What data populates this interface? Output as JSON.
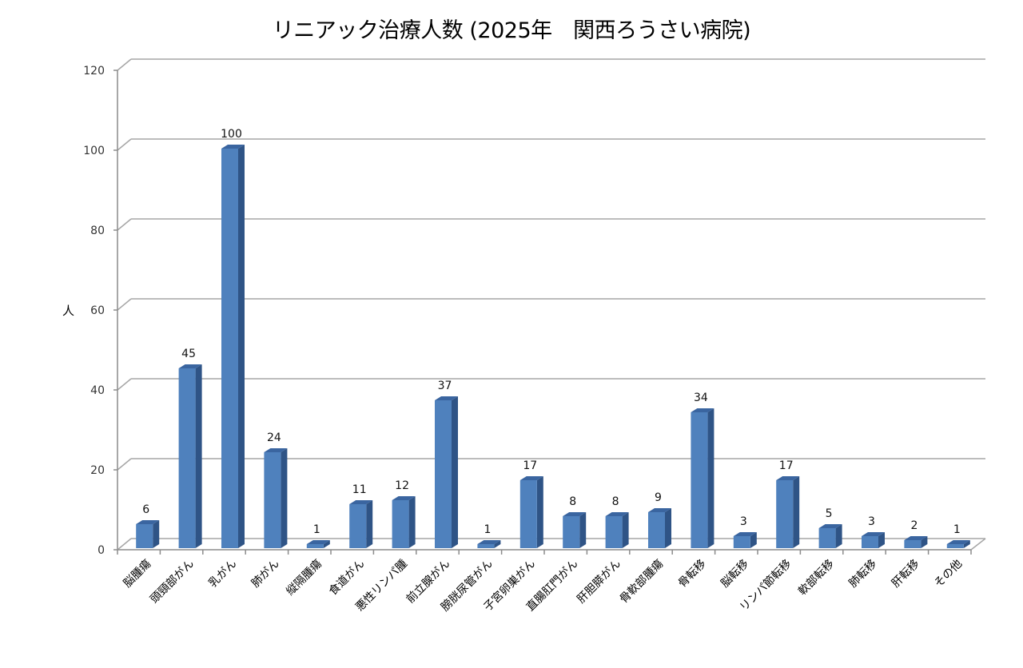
{
  "chart_data": {
    "type": "bar",
    "title": "リニアック治療人数 (2025年　関西ろうさい病院)",
    "xlabel": "",
    "ylabel": "人",
    "ylim": [
      0,
      120
    ],
    "yticks": [
      0,
      20,
      40,
      60,
      80,
      100,
      120
    ],
    "grid": true,
    "legend": null,
    "style": "3d-column",
    "categories": [
      "脳腫瘍",
      "頭頸部がん",
      "乳がん",
      "肺がん",
      "縦隔腫瘍",
      "食道がん",
      "悪性リンパ腫",
      "前立腺がん",
      "膀胱尿管がん",
      "子宮卵巣がん",
      "直腸肛門がん",
      "肝胆膵がん",
      "骨軟部腫瘍",
      "骨転移",
      "脳転移",
      "リンパ節転移",
      "軟部転移",
      "肺転移",
      "肝転移",
      "その他"
    ],
    "values": [
      6,
      45,
      100,
      24,
      1,
      11,
      12,
      37,
      1,
      17,
      8,
      8,
      9,
      34,
      3,
      17,
      5,
      3,
      2,
      1
    ],
    "data_labels": true
  },
  "colors": {
    "bar_front": "#4F81BD",
    "bar_side": "#2F5486",
    "bar_top": "#3A65A0",
    "grid": "#A6A6A6",
    "axis": "#8C8C8C"
  }
}
